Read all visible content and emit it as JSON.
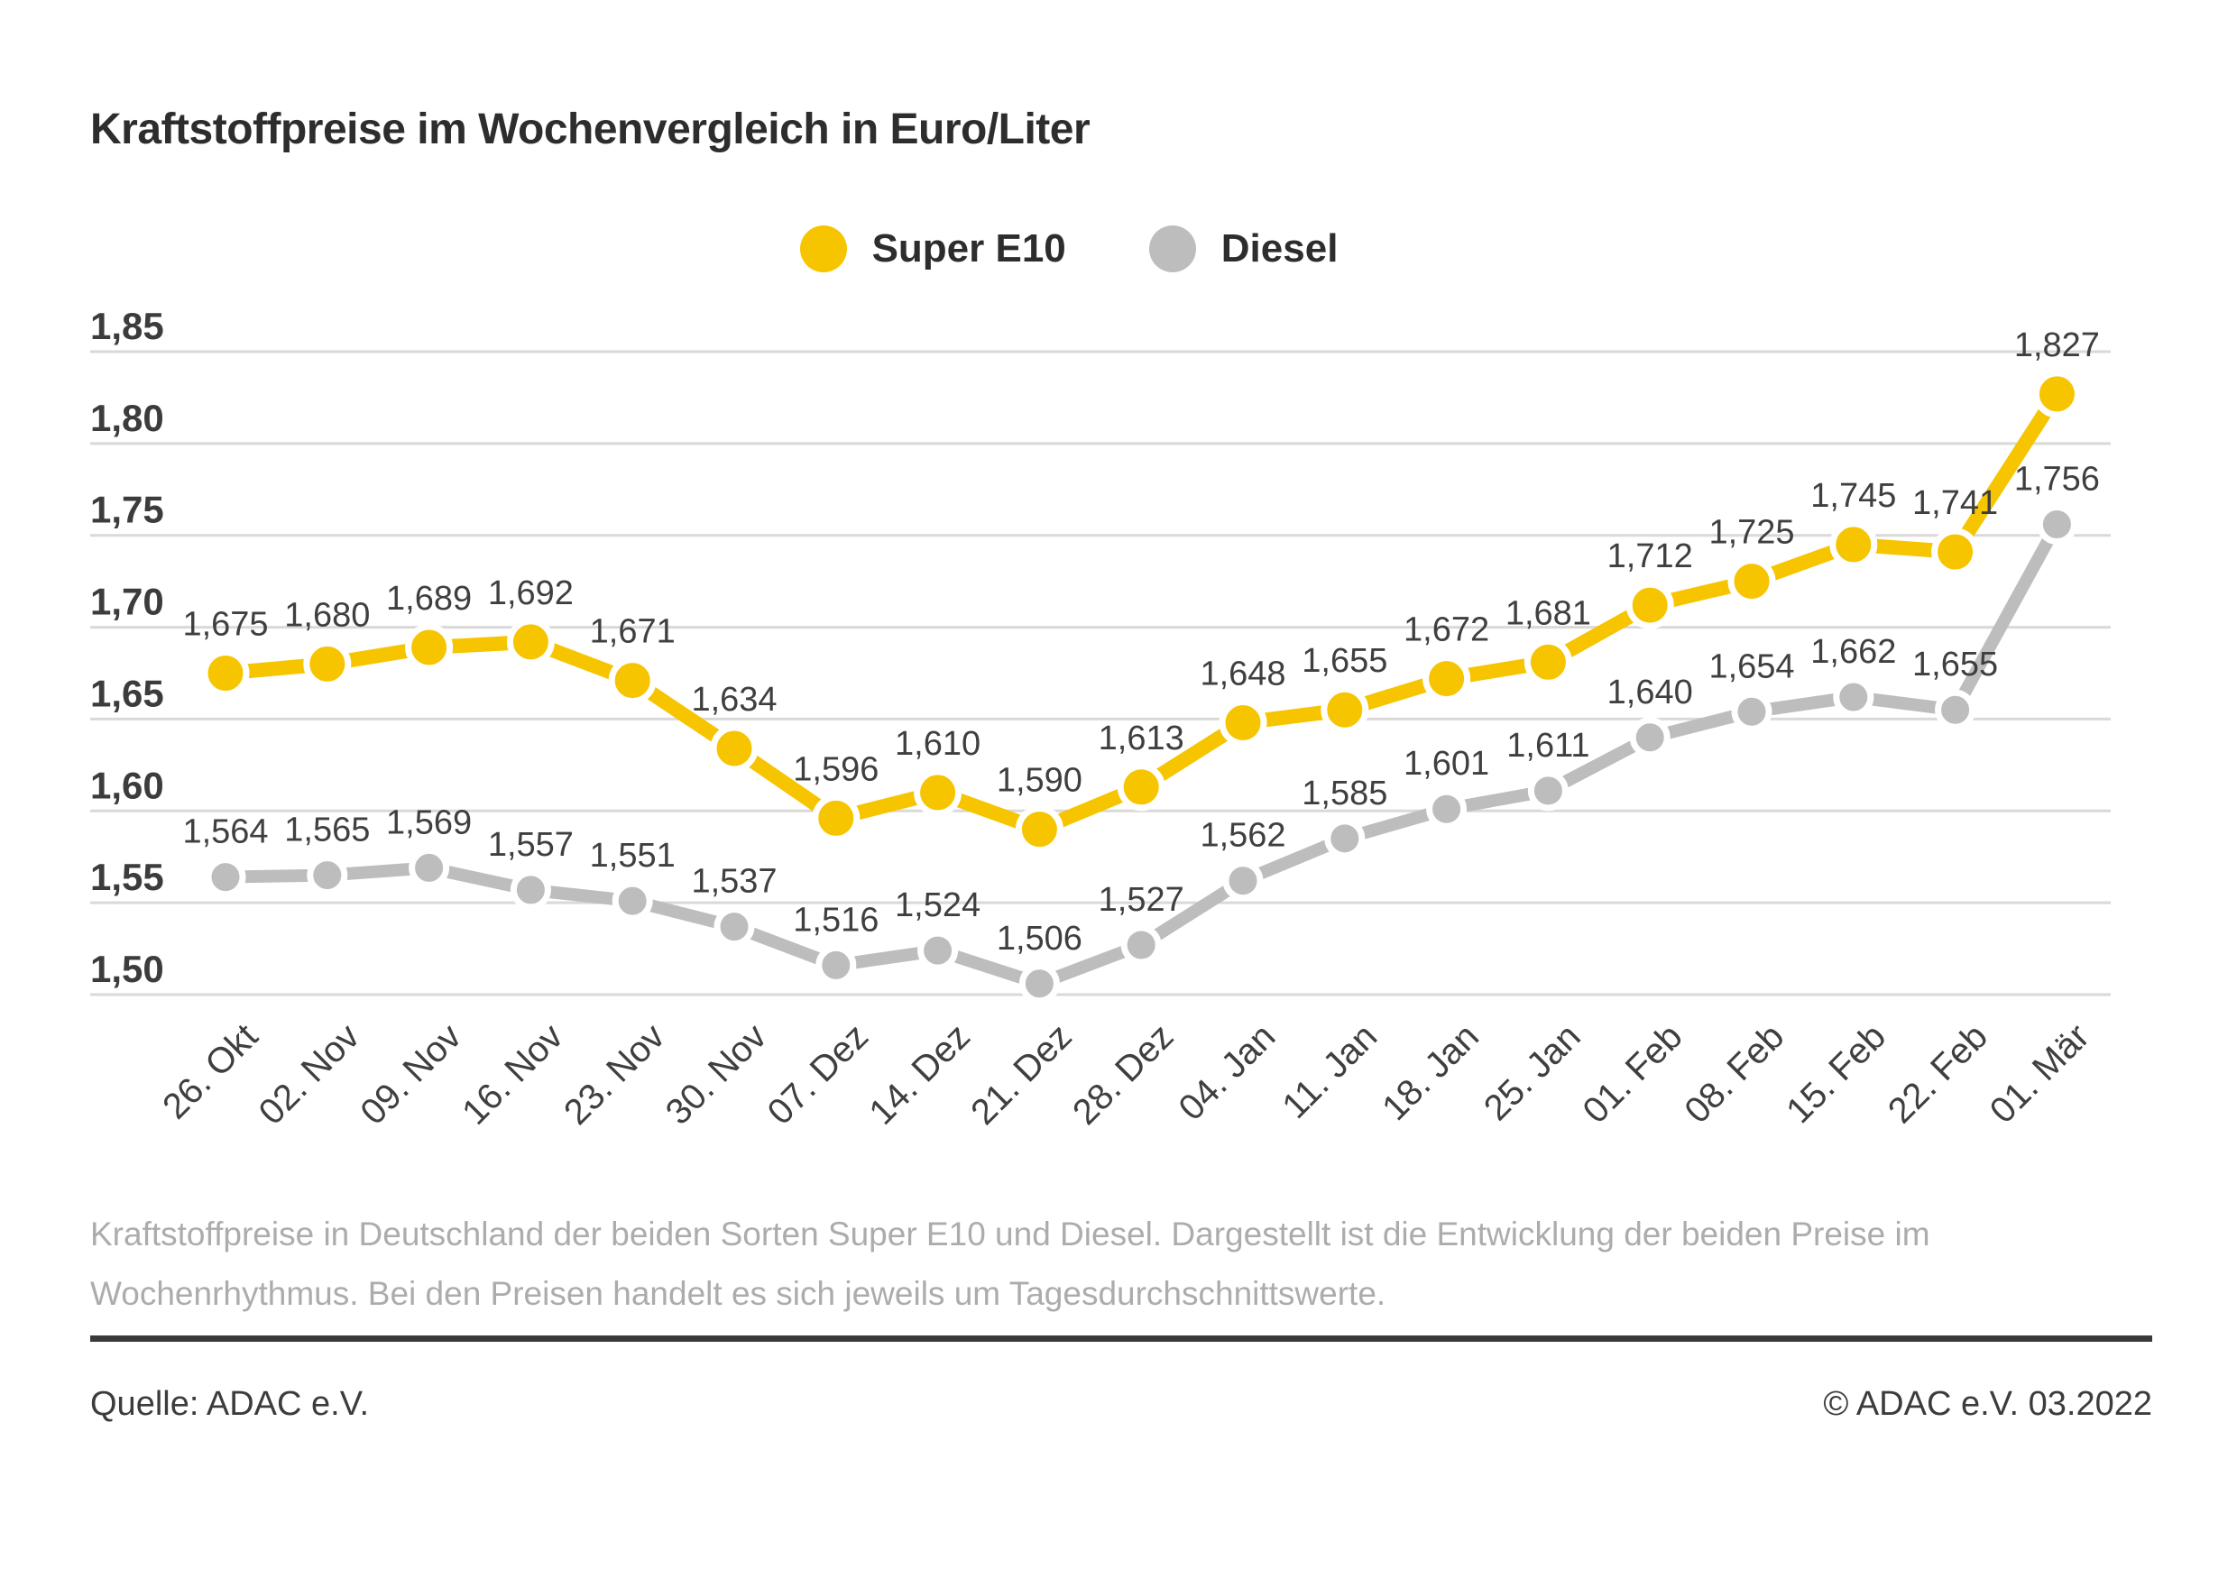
{
  "title": "Kraftstoffpreise im Wochenvergleich in Euro/Liter",
  "chart_data": {
    "type": "line",
    "categories": [
      "26. Okt",
      "02. Nov",
      "09. Nov",
      "16. Nov",
      "23. Nov",
      "30. Nov",
      "07. Dez",
      "14. Dez",
      "21. Dez",
      "28. Dez",
      "04. Jan",
      "11. Jan",
      "18. Jan",
      "25. Jan",
      "01. Feb",
      "08. Feb",
      "15. Feb",
      "22. Feb",
      "01. Mär"
    ],
    "series": [
      {
        "name": "Super E10",
        "color": "#F6C500",
        "values": [
          1.675,
          1.68,
          1.689,
          1.692,
          1.671,
          1.634,
          1.596,
          1.61,
          1.59,
          1.613,
          1.648,
          1.655,
          1.672,
          1.681,
          1.712,
          1.725,
          1.745,
          1.741,
          1.827
        ]
      },
      {
        "name": "Diesel",
        "color": "#BDBDBD",
        "values": [
          1.564,
          1.565,
          1.569,
          1.557,
          1.551,
          1.537,
          1.516,
          1.524,
          1.506,
          1.527,
          1.562,
          1.585,
          1.601,
          1.611,
          1.64,
          1.654,
          1.662,
          1.655,
          1.756
        ]
      }
    ],
    "title": "Kraftstoffpreise im Wochenvergleich in Euro/Liter",
    "xlabel": "",
    "ylabel": "",
    "ylim": [
      1.5,
      1.85
    ],
    "yticks": [
      1.85,
      1.8,
      1.75,
      1.7,
      1.65,
      1.6,
      1.55,
      1.5
    ],
    "grid": true,
    "legend_position": "top-center",
    "decimal_separator": ",",
    "colors": {
      "grid": "#D9D9D9",
      "label_text": "#3f3f3f",
      "axis_text": "#3c3c3c"
    }
  },
  "description": {
    "line1": "Kraftstoffpreise in Deutschland der beiden Sorten Super E10 und Diesel. Dargestellt ist die Entwicklung der beiden Preise im",
    "line2": "Wochenrhythmus. Bei den Preisen handelt es sich jeweils um Tagesdurchschnittswerte."
  },
  "footer": {
    "source": "Quelle: ADAC e.V.",
    "copyright": "© ADAC e.V. 03.2022"
  }
}
